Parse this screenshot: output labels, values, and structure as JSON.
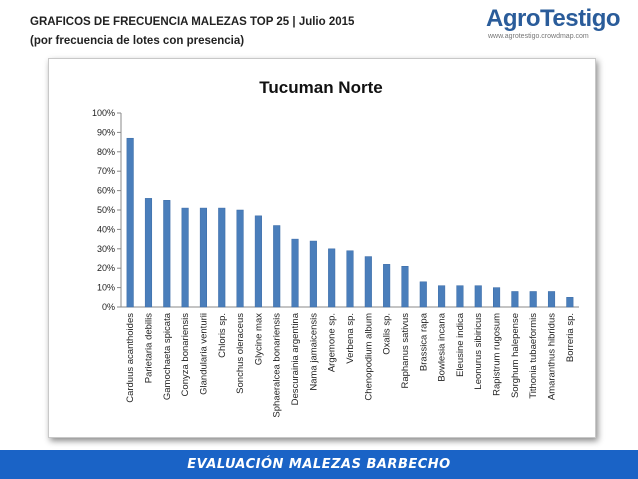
{
  "header": {
    "title_line1": "GRAFICOS DE FRECUENCIA MALEZAS TOP 25 | Julio 2015",
    "title_line2": "(por frecuencia de lotes con presencia)"
  },
  "logo": {
    "name": "AgroTestigo",
    "url": "www.agrotestigo.crowdmap.com"
  },
  "footer": {
    "text": "EVALUACIÓN MALEZAS BARBECHO"
  },
  "colors": {
    "bar": "#4a7ebb",
    "bar_edge": "#3a6aa5",
    "footer": "#1a63c6",
    "logo": "#2a5c9a"
  },
  "chart_data": {
    "type": "bar",
    "title": "Tucuman Norte",
    "xlabel": "",
    "ylabel": "",
    "ylim": [
      0,
      100
    ],
    "yticks": [
      "0%",
      "10%",
      "20%",
      "30%",
      "40%",
      "50%",
      "60%",
      "70%",
      "80%",
      "90%",
      "100%"
    ],
    "grid": false,
    "categories": [
      "Carduus acanthoides",
      "Parietaria debilis",
      "Gamochaeta spicata",
      "Conyza bonariensis",
      "Glandularia venturii",
      "Chloris sp.",
      "Sonchus oleraceus",
      "Glycine max",
      "Sphaeralcea bonariensis",
      "Descurainia argentina",
      "Nama jamaicensis",
      "Argemone sp.",
      "Verbena sp.",
      "Chenopodium album",
      "Oxalis sp.",
      "Raphanus sativus",
      "Brassica rapa",
      "Bowlesia incana",
      "Eleusine indica",
      "Leonurus sibiricus",
      "Rapistrum rugosum",
      "Sorghum halepense",
      "Tithonia tubaeformis",
      "Amaranthus hibridus",
      "Borreria sp."
    ],
    "values": [
      87,
      56,
      55,
      51,
      51,
      51,
      50,
      47,
      42,
      35,
      34,
      30,
      29,
      26,
      22,
      21,
      13,
      11,
      11,
      11,
      10,
      8,
      8,
      8,
      5
    ]
  }
}
